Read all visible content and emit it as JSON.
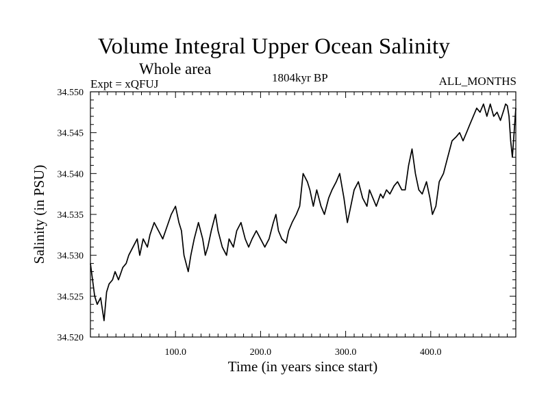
{
  "header": {
    "title": "Volume Integral Upper Ocean Salinity",
    "subtitle": "Whole area",
    "experiment": "Expt = xQFUJ",
    "period": "1804kyr BP",
    "months": "ALL_MONTHS"
  },
  "chart_data": {
    "type": "line",
    "title": "Volume Integral Upper Ocean Salinity",
    "xlabel": "Time (in years since start)",
    "ylabel": "Salinity (in PSU)",
    "xlim": [
      0,
      500
    ],
    "ylim": [
      34.52,
      34.55
    ],
    "grid": false,
    "x_ticks": [
      100,
      200,
      300,
      400
    ],
    "x_tick_labels": [
      "100.0",
      "200.0",
      "300.0",
      "400.0"
    ],
    "y_ticks": [
      34.52,
      34.525,
      34.53,
      34.535,
      34.54,
      34.545,
      34.55
    ],
    "y_tick_labels": [
      "34.520",
      "34.525",
      "34.530",
      "34.535",
      "34.540",
      "34.545",
      "34.550"
    ],
    "series": [
      {
        "name": "salinity",
        "x": [
          0,
          5,
          8,
          12,
          16,
          19,
          22,
          26,
          29,
          33,
          38,
          42,
          45,
          50,
          55,
          58,
          62,
          67,
          70,
          75,
          80,
          85,
          90,
          95,
          100,
          104,
          107,
          110,
          115,
          118,
          122,
          127,
          132,
          135,
          138,
          142,
          147,
          150,
          155,
          160,
          163,
          168,
          172,
          177,
          182,
          186,
          190,
          195,
          200,
          205,
          210,
          215,
          218,
          221,
          225,
          230,
          233,
          237,
          242,
          246,
          250,
          255,
          258,
          262,
          266,
          271,
          275,
          280,
          284,
          289,
          293,
          298,
          302,
          306,
          310,
          315,
          320,
          325,
          328,
          332,
          336,
          341,
          344,
          348,
          352,
          357,
          361,
          366,
          370,
          374,
          378,
          382,
          386,
          390,
          395,
          399,
          402,
          406,
          410,
          415,
          420,
          425,
          430,
          434,
          438,
          442,
          446,
          450,
          454,
          458,
          462,
          466,
          470,
          474,
          478,
          482,
          486,
          488,
          490,
          492,
          494,
          496,
          498,
          500
        ],
        "values": [
          34.529,
          34.525,
          34.524,
          34.5248,
          34.522,
          34.5255,
          34.5265,
          34.527,
          34.528,
          34.527,
          34.5285,
          34.529,
          34.53,
          34.531,
          34.532,
          34.53,
          34.532,
          34.531,
          34.5325,
          34.534,
          34.533,
          34.532,
          34.5335,
          34.535,
          34.536,
          34.534,
          34.533,
          34.53,
          34.528,
          34.53,
          34.532,
          34.534,
          34.532,
          34.53,
          34.531,
          34.533,
          34.535,
          34.533,
          34.531,
          34.53,
          34.532,
          34.531,
          34.533,
          34.534,
          34.532,
          34.531,
          34.532,
          34.533,
          34.532,
          34.531,
          34.532,
          34.534,
          34.535,
          34.533,
          34.532,
          34.5315,
          34.533,
          34.534,
          34.535,
          34.536,
          34.54,
          34.539,
          34.538,
          34.536,
          34.538,
          34.536,
          34.535,
          34.537,
          34.538,
          34.539,
          34.54,
          34.537,
          34.534,
          34.536,
          34.538,
          34.539,
          34.537,
          34.536,
          34.538,
          34.537,
          34.536,
          34.5375,
          34.537,
          34.538,
          34.5375,
          34.5385,
          34.539,
          34.538,
          34.538,
          34.541,
          34.543,
          34.54,
          34.538,
          34.5375,
          34.539,
          34.537,
          34.535,
          34.536,
          34.539,
          34.54,
          34.542,
          34.544,
          34.5445,
          34.545,
          34.544,
          34.545,
          34.546,
          34.547,
          34.548,
          34.5475,
          34.5485,
          34.547,
          34.5485,
          34.547,
          34.5475,
          34.5465,
          34.5478,
          34.5485,
          34.5483,
          34.547,
          34.544,
          34.542,
          34.545,
          34.548
        ]
      }
    ]
  }
}
